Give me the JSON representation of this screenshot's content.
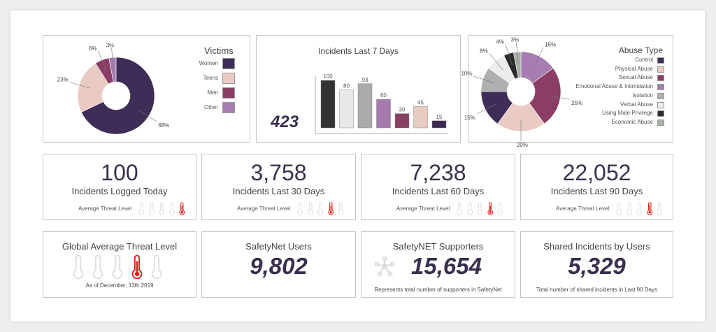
{
  "colors": {
    "control": "#3e2d56",
    "physical": "#e9cbc3",
    "sexual": "#8a3e65",
    "emotional": "#a57db0",
    "isolation": "#b0b0b0",
    "verbal": "#ececec",
    "male": "#2b2b2b",
    "economic": "#a8b0a8",
    "threat_active": "#e0201b",
    "threat_inactive": "#dedede"
  },
  "chart_data": [
    {
      "type": "pie",
      "title": "Victims",
      "labels": [
        "Women",
        "Teens",
        "Men",
        "Other"
      ],
      "values": [
        68,
        23,
        6,
        3
      ],
      "value_labels": [
        "68%",
        "23%",
        "6%",
        "3%"
      ],
      "colors": [
        "#3e2d56",
        "#e9cbc3",
        "#8a3e65",
        "#a57db0"
      ],
      "legend": "right"
    },
    {
      "type": "bar",
      "title": "Incidents Last 7 Days",
      "values": [
        100,
        80,
        93,
        60,
        30,
        45,
        15
      ],
      "value_labels": [
        "100",
        "80",
        "93",
        "60",
        "30",
        "45",
        "15"
      ],
      "colors": [
        "#333333",
        "#e8e8e8",
        "#aaaaaa",
        "#a57aae",
        "#8b3f63",
        "#e8cbc2",
        "#3b2b54"
      ],
      "ylim": [
        0,
        100
      ],
      "total": "423"
    },
    {
      "type": "pie",
      "title": "Abuse Type",
      "labels": [
        "Emotional Abuse & Intimidation",
        "Sexual Abuse",
        "Physical Abuse",
        "Control",
        "Isolation",
        "Verbal Abuse",
        "Using Male Privilege",
        "Economic Abuse"
      ],
      "values": [
        15,
        25,
        20,
        15,
        10,
        8,
        4,
        3
      ],
      "value_labels": [
        "15%",
        "25%",
        "20%",
        "15%",
        "10%",
        "8%",
        "4%",
        "3%"
      ],
      "colors": [
        "#a57db0",
        "#8a3e65",
        "#e9cbc3",
        "#3e2d56",
        "#b0b0b0",
        "#ececec",
        "#2b2b2b",
        "#a8b0a8"
      ],
      "legend_order": [
        "Control",
        "Physical Abuse",
        "Sexual Abuse",
        "Emotional Abuse & Intimidation",
        "Isolation",
        "Verbal Abuse",
        "Using Male Privilege",
        "Economic Abuse"
      ],
      "legend_colors": [
        "#3e2d56",
        "#e9cbc3",
        "#8a3e65",
        "#a57db0",
        "#b0b0b0",
        "#ececec",
        "#2b2b2b",
        "#a8b0a8"
      ],
      "legend": "right"
    }
  ],
  "stats": [
    {
      "value": "100",
      "label": "Incidents Logged Today",
      "threat_label": "Average Threat Level",
      "threat_level": 5
    },
    {
      "value": "3,758",
      "label": "Incidents Last 30 Days",
      "threat_label": "Average Threat Level",
      "threat_level": 4
    },
    {
      "value": "7,238",
      "label": "Incidents Last 60 Days",
      "threat_label": "Average Threat Level",
      "threat_level": 4
    },
    {
      "value": "22,052",
      "label": "Incidents Last 90 Days",
      "threat_label": "Average Threat Level",
      "threat_level": 4
    }
  ],
  "global": {
    "title": "Global Average Threat Level",
    "threat_level": 4,
    "date": "As of December, 13th 2019"
  },
  "users": {
    "title": "SafetyNet Users",
    "value": "9,802"
  },
  "supporters": {
    "title": "SafetyNET Supporters",
    "value": "15,654",
    "note": "Represents total number of supporters in SafetyNet"
  },
  "shared": {
    "title": "Shared Incidents by Users",
    "value": "5,329",
    "note": "Total number of shared incidents in Last 90 Days"
  }
}
